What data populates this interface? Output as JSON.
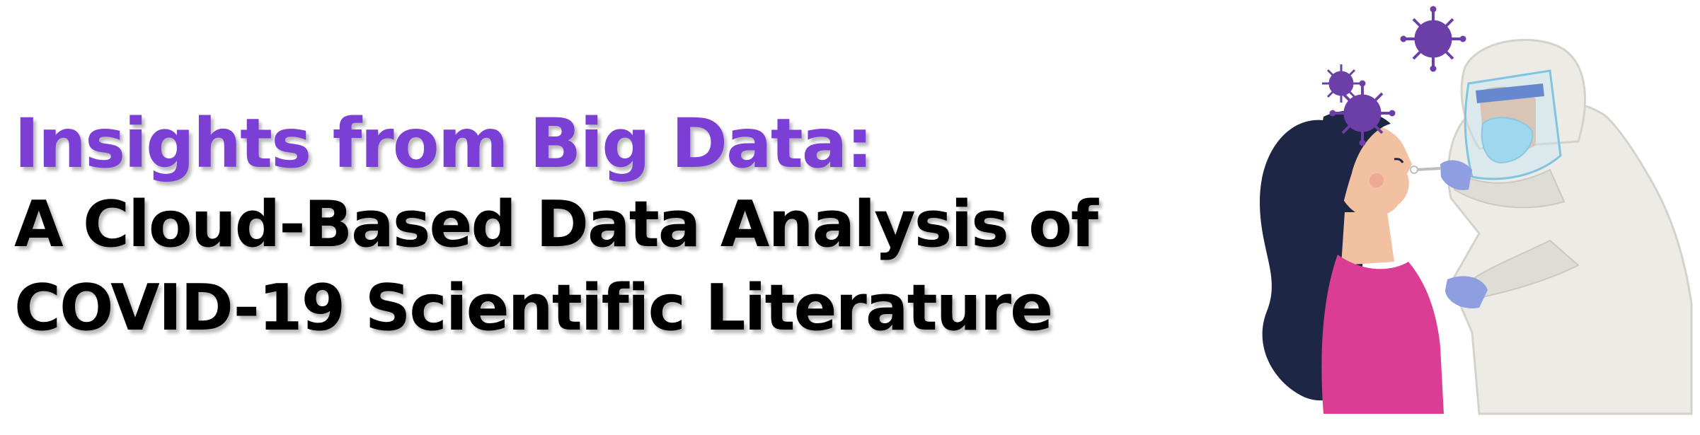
{
  "headline": {
    "line1": "Insights from Big Data:",
    "line2": "A Cloud-Based Data Analysis of",
    "line3": "COVID-19 Scientific Literature"
  },
  "colors": {
    "accent": "#7c3fd6",
    "text": "#000000",
    "virus": "#6c3fa8",
    "shirt": "#dc3d94",
    "hair": "#1e2646",
    "skin": "#f1c1a1",
    "suit": "#ecebe6",
    "glove": "#8f9ee0",
    "mask": "#8fd0ea"
  },
  "illustration": {
    "icons": [
      "woman-patient-icon",
      "health-worker-icon",
      "nasal-swab-icon",
      "virus-icon"
    ]
  }
}
